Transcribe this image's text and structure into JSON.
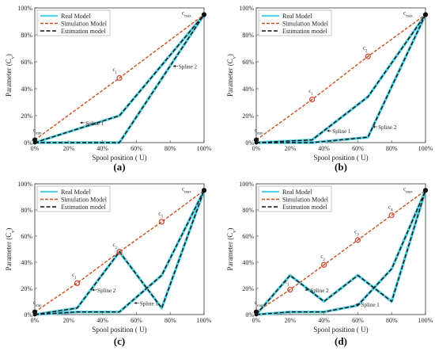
{
  "chart_data": [
    {
      "type": "line",
      "panel_label": "(a)",
      "xlabel": "Spool position  ( U)",
      "ylabel": "Parameter (C_v)",
      "xlim": [
        0,
        100
      ],
      "ylim": [
        0,
        100
      ],
      "xticks": [
        "0%",
        "20%",
        "40%",
        "60%",
        "80%",
        "100%"
      ],
      "yticks": [
        "0%",
        "20%",
        "40%",
        "60%",
        "80%",
        "100%"
      ],
      "legend": [
        "Real Model",
        "Simulation Model",
        "Estimation model"
      ],
      "legend_position": "top-left",
      "simulation_points": [
        [
          0,
          2
        ],
        [
          50,
          48
        ],
        [
          100,
          95
        ]
      ],
      "spline1": [
        [
          0,
          0
        ],
        [
          50,
          20
        ],
        [
          100,
          95
        ]
      ],
      "spline2": [
        [
          0,
          0
        ],
        [
          50,
          0
        ],
        [
          100,
          95
        ]
      ],
      "point_labels": [
        {
          "text": "c_min",
          "x": 0,
          "y": 2,
          "tx": -1,
          "ty": 8
        },
        {
          "text": "c_1",
          "x": 50,
          "y": 48,
          "tx": 46,
          "ty": 53
        },
        {
          "text": "c_max",
          "x": 100,
          "y": 95,
          "tx": 87,
          "ty": 95
        }
      ],
      "annotations": [
        {
          "text": "Spline 1",
          "x": 30,
          "y": 13
        },
        {
          "text": "Spline 2",
          "x": 85,
          "y": 55
        }
      ]
    },
    {
      "type": "line",
      "panel_label": "(b)",
      "xlabel": "Spool position  ( U)",
      "ylabel": "Parameter (C_v)",
      "xlim": [
        0,
        100
      ],
      "ylim": [
        0,
        100
      ],
      "xticks": [
        "0%",
        "20%",
        "40%",
        "60%",
        "80%",
        "100%"
      ],
      "yticks": [
        "0%",
        "20%",
        "40%",
        "60%",
        "80%",
        "100%"
      ],
      "legend": [
        "Real Model",
        "Simulation Model",
        "Estimation model"
      ],
      "legend_position": "top-left",
      "simulation_points": [
        [
          0,
          2
        ],
        [
          33,
          32
        ],
        [
          66,
          64
        ],
        [
          100,
          95
        ]
      ],
      "spline1": [
        [
          0,
          0
        ],
        [
          33,
          2
        ],
        [
          66,
          34
        ],
        [
          100,
          95
        ]
      ],
      "spline2": [
        [
          0,
          0
        ],
        [
          33,
          0
        ],
        [
          66,
          4
        ],
        [
          100,
          95
        ]
      ],
      "point_labels": [
        {
          "text": "c_min",
          "x": 0,
          "y": 2,
          "tx": -1,
          "ty": 8
        },
        {
          "text": "c_1",
          "x": 33,
          "y": 32,
          "tx": 31,
          "ty": 37
        },
        {
          "text": "c_2",
          "x": 66,
          "y": 64,
          "tx": 63,
          "ty": 69
        },
        {
          "text": "c_max",
          "x": 100,
          "y": 95,
          "tx": 87,
          "ty": 95
        }
      ],
      "annotations": [
        {
          "text": "Spline 1",
          "x": 45,
          "y": 7
        },
        {
          "text": "Spline 2",
          "x": 72,
          "y": 10
        }
      ]
    },
    {
      "type": "line",
      "panel_label": "(c)",
      "xlabel": "Spool position  ( U)",
      "ylabel": "Parameter (C_v)",
      "xlim": [
        0,
        100
      ],
      "ylim": [
        0,
        100
      ],
      "xticks": [
        "0%",
        "20%",
        "40%",
        "60%",
        "80%",
        "100%"
      ],
      "yticks": [
        "0%",
        "20%",
        "40%",
        "60%",
        "80%",
        "100%"
      ],
      "legend": [
        "Real Model",
        "Simulation Model",
        "Estimation model"
      ],
      "legend_position": "top-left",
      "simulation_points": [
        [
          0,
          2
        ],
        [
          25,
          24
        ],
        [
          50,
          48
        ],
        [
          75,
          71
        ],
        [
          100,
          95
        ]
      ],
      "spline1": [
        [
          0,
          0
        ],
        [
          25,
          5
        ],
        [
          50,
          48
        ],
        [
          75,
          5
        ],
        [
          100,
          95
        ]
      ],
      "spline2": [
        [
          0,
          0
        ],
        [
          25,
          2
        ],
        [
          50,
          2
        ],
        [
          75,
          30
        ],
        [
          100,
          95
        ]
      ],
      "point_labels": [
        {
          "text": "c_min",
          "x": 0,
          "y": 2,
          "tx": -1,
          "ty": 8
        },
        {
          "text": "c_1",
          "x": 25,
          "y": 24,
          "tx": 22,
          "ty": 29
        },
        {
          "text": "c_2",
          "x": 50,
          "y": 48,
          "tx": 46,
          "ty": 52
        },
        {
          "text": "c_3",
          "x": 75,
          "y": 71,
          "tx": 73,
          "ty": 76
        },
        {
          "text": "c_max",
          "x": 100,
          "y": 95,
          "tx": 87,
          "ty": 95
        }
      ],
      "annotations": [
        {
          "text": "Spline 2",
          "x": 37,
          "y": 17
        },
        {
          "text": "Spline 1",
          "x": 62,
          "y": 7
        }
      ]
    },
    {
      "type": "line",
      "panel_label": "(d)",
      "xlabel": "Spool position  ( U)",
      "ylabel": "Parameter (C_v)",
      "xlim": [
        0,
        100
      ],
      "ylim": [
        0,
        100
      ],
      "xticks": [
        "0%",
        "20%",
        "40%",
        "60%",
        "80%",
        "100%"
      ],
      "yticks": [
        "0%",
        "20%",
        "40%",
        "60%",
        "80%",
        "100%"
      ],
      "legend": [
        "Real Model",
        "Simulation Model",
        "Estimation model"
      ],
      "legend_position": "top-left",
      "simulation_points": [
        [
          0,
          2
        ],
        [
          20,
          19
        ],
        [
          40,
          38
        ],
        [
          60,
          57
        ],
        [
          80,
          76
        ],
        [
          100,
          95
        ]
      ],
      "spline1": [
        [
          0,
          0
        ],
        [
          20,
          30
        ],
        [
          40,
          10
        ],
        [
          60,
          30
        ],
        [
          80,
          10
        ],
        [
          100,
          95
        ]
      ],
      "spline2": [
        [
          0,
          0
        ],
        [
          20,
          2
        ],
        [
          40,
          2
        ],
        [
          60,
          7
        ],
        [
          80,
          35
        ],
        [
          100,
          95
        ]
      ],
      "point_labels": [
        {
          "text": "c_min",
          "x": 0,
          "y": 2,
          "tx": -1,
          "ty": 8
        },
        {
          "text": "c_1",
          "x": 20,
          "y": 19,
          "tx": 17,
          "ty": 24
        },
        {
          "text": "c_2",
          "x": 40,
          "y": 38,
          "tx": 38,
          "ty": 43
        },
        {
          "text": "c_3",
          "x": 60,
          "y": 57,
          "tx": 58,
          "ty": 62
        },
        {
          "text": "c_4",
          "x": 80,
          "y": 76,
          "tx": 78,
          "ty": 81
        },
        {
          "text": "c_max",
          "x": 100,
          "y": 95,
          "tx": 87,
          "ty": 95
        }
      ],
      "annotations": [
        {
          "text": "Spline 2",
          "x": 32,
          "y": 17
        },
        {
          "text": "Spline 1",
          "x": 62,
          "y": 6
        }
      ]
    }
  ],
  "colors": {
    "real_model": "#5ad0e0",
    "simulation_model": "#c8501e",
    "estimation_model": "#111111",
    "marker": "#d24a3a"
  }
}
